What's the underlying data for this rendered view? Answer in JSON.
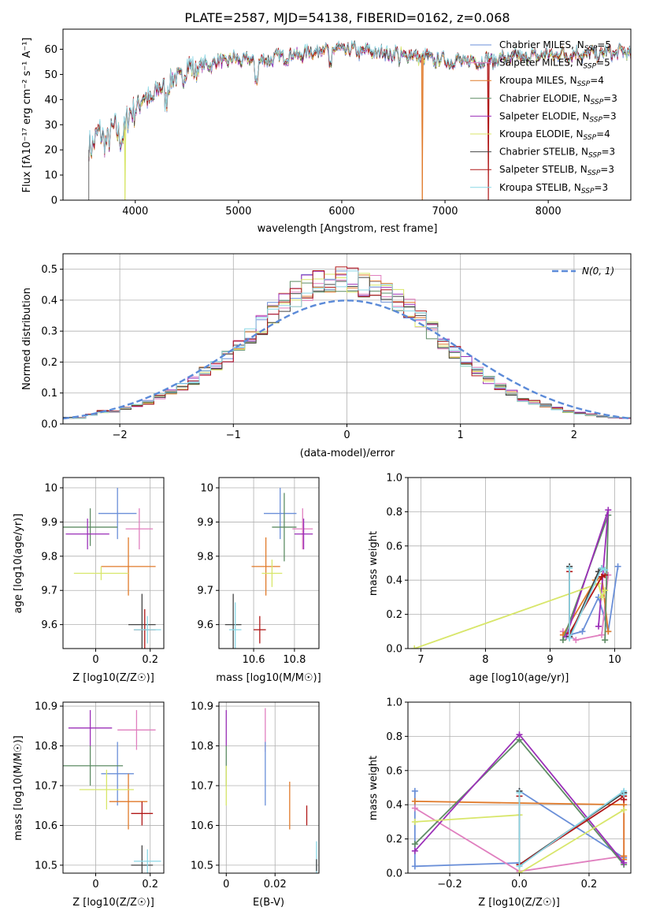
{
  "title": "PLATE=2587, MJD=54138, FIBERID=0162, z=0.068",
  "colors": {
    "Chabrier MILES": "#6a8fd8",
    "Salpeter MILES": "#e07fbf",
    "Kroupa MILES": "#e07a2a",
    "Chabrier ELODIE": "#5e8c64",
    "Salpeter ELODIE": "#9b2fb8",
    "Kroupa ELODIE": "#d8e66a",
    "Chabrier STELIB": "#454545",
    "Salpeter STELIB": "#b01818",
    "Kroupa STELIB": "#8ad7e6"
  },
  "chart_data": [
    {
      "type": "line",
      "panel": "spectrum",
      "xlabel": "wavelength [Angstrom, rest frame]",
      "ylabel": "Flux [fλ10⁻¹⁷ erg cm⁻² s⁻¹ A⁻¹]",
      "xlim": [
        3300,
        8800
      ],
      "ylim": [
        0,
        68
      ],
      "xticks": [
        4000,
        5000,
        6000,
        7000,
        8000
      ],
      "yticks": [
        0,
        10,
        20,
        30,
        40,
        50,
        60
      ],
      "legend_position": "top-right",
      "continuum": {
        "x": [
          3550,
          3600,
          3700,
          3800,
          3900,
          4000,
          4100,
          4200,
          4300,
          4400,
          4500,
          4600,
          4800,
          5000,
          5200,
          5400,
          5600,
          5800,
          6000,
          6300,
          6600,
          6900,
          7200,
          7500,
          7800,
          8100,
          8400,
          8800
        ],
        "y": [
          23,
          24,
          25,
          26,
          28,
          38,
          40,
          42,
          46,
          48,
          52,
          53,
          55,
          56,
          55,
          57,
          58,
          60,
          60,
          59,
          58,
          56,
          55,
          56,
          57,
          58,
          58,
          59
        ]
      },
      "series": [
        {
          "name": "Chabrier MILES, N_SSP=5",
          "label_main": "Chabrier MILES, N",
          "label_sub": "SSP",
          "label_end": "=5"
        },
        {
          "name": "Salpeter MILES, N_SSP=5",
          "label_main": "Salpeter MILES, N",
          "label_sub": "SSP",
          "label_end": "=5"
        },
        {
          "name": "Kroupa MILES, N_SSP=4",
          "label_main": "Kroupa MILES, N",
          "label_sub": "SSP",
          "label_end": "=4"
        },
        {
          "name": "Chabrier ELODIE, N_SSP=3",
          "label_main": "Chabrier ELODIE, N",
          "label_sub": "SSP",
          "label_end": "=3"
        },
        {
          "name": "Salpeter ELODIE, N_SSP=3",
          "label_main": "Salpeter ELODIE, N",
          "label_sub": "SSP",
          "label_end": "=3"
        },
        {
          "name": "Kroupa ELODIE, N_SSP=4",
          "label_main": "Kroupa ELODIE, N",
          "label_sub": "SSP",
          "label_end": "=4"
        },
        {
          "name": "Chabrier STELIB, N_SSP=3",
          "label_main": "Chabrier STELIB, N",
          "label_sub": "SSP",
          "label_end": "=3"
        },
        {
          "name": "Salpeter STELIB, N_SSP=3",
          "label_main": "Salpeter STELIB, N",
          "label_sub": "SSP",
          "label_end": "=3"
        },
        {
          "name": "Kroupa STELIB, N_SSP=3",
          "label_main": "Kroupa STELIB, N",
          "label_sub": "SSP",
          "label_end": "=3"
        }
      ],
      "dropouts": [
        {
          "model": "Kroupa ELODIE",
          "x": 3900
        },
        {
          "model": "Kroupa MILES",
          "x": 6780
        },
        {
          "model": "Salpeter STELIB",
          "x": 7420
        }
      ]
    },
    {
      "type": "line",
      "panel": "residual_histogram",
      "xlabel": "(data-model)/error",
      "ylabel": "Normed distribution",
      "xlim": [
        -2.5,
        2.5
      ],
      "ylim": [
        0,
        0.55
      ],
      "xticks": [
        -2,
        -1,
        0,
        1,
        2
      ],
      "xtick_labels": [
        "−2",
        "−1",
        "0",
        "1",
        "2"
      ],
      "yticks": [
        0.0,
        0.1,
        0.2,
        0.3,
        0.4,
        0.5
      ],
      "legend": "N(0, 1)",
      "legend_position": "top-right",
      "bin_edges_start": -2.5,
      "bin_width": 0.1,
      "bin_values": [
        0.02,
        0.02,
        0.03,
        0.04,
        0.04,
        0.05,
        0.06,
        0.07,
        0.09,
        0.1,
        0.12,
        0.14,
        0.17,
        0.19,
        0.22,
        0.25,
        0.28,
        0.32,
        0.36,
        0.39,
        0.42,
        0.44,
        0.46,
        0.47,
        0.47,
        0.46,
        0.45,
        0.44,
        0.42,
        0.4,
        0.37,
        0.34,
        0.3,
        0.26,
        0.23,
        0.2,
        0.17,
        0.14,
        0.12,
        0.1,
        0.08,
        0.07,
        0.06,
        0.05,
        0.04,
        0.035,
        0.03,
        0.025,
        0.02,
        0.02
      ],
      "gaussian": {
        "mean": 0,
        "sigma": 1
      }
    },
    {
      "type": "scatter",
      "panel": "age_vs_Z",
      "xlabel": "Z [log10(Z/Z☉)]",
      "ylabel": "age [log10(age/yr)]",
      "xlim": [
        -0.12,
        0.25
      ],
      "ylim": [
        9.53,
        10.03
      ],
      "xticks": [
        0.0,
        0.2
      ],
      "yticks": [
        9.6,
        9.7,
        9.8,
        9.9,
        10.0
      ],
      "points": [
        {
          "model": "Chabrier MILES",
          "x": 0.08,
          "xerr": 0.07,
          "y": 9.925,
          "yerr": 0.075
        },
        {
          "model": "Salpeter MILES",
          "x": 0.16,
          "xerr": 0.05,
          "y": 9.88,
          "yerr": 0.06
        },
        {
          "model": "Kroupa MILES",
          "x": 0.12,
          "xerr": 0.1,
          "y": 9.77,
          "yerr": 0.085
        },
        {
          "model": "Chabrier ELODIE",
          "x": -0.02,
          "xerr": 0.1,
          "y": 9.885,
          "yerr": 0.055
        },
        {
          "model": "Salpeter ELODIE",
          "x": -0.03,
          "xerr": 0.08,
          "y": 9.865,
          "yerr": 0.045
        },
        {
          "model": "Kroupa ELODIE",
          "x": 0.02,
          "xerr": 0.1,
          "y": 9.75,
          "yerr": 0.02
        },
        {
          "model": "Chabrier STELIB",
          "x": 0.17,
          "xerr": 0.05,
          "y": 9.6,
          "yerr": 0.09
        },
        {
          "model": "Salpeter STELIB",
          "x": 0.18,
          "xerr": 0.04,
          "y": 9.585,
          "yerr": 0.06
        },
        {
          "model": "Kroupa STELIB",
          "x": 0.19,
          "xerr": 0.05,
          "y": 9.585,
          "yerr": 0.04
        }
      ]
    },
    {
      "type": "scatter",
      "panel": "age_vs_mass",
      "xlabel": "mass [log10(M/M☉)]",
      "ylabel": "",
      "xlim": [
        10.43,
        10.92
      ],
      "ylim": [
        9.53,
        10.03
      ],
      "xticks": [
        10.6,
        10.8
      ],
      "yticks": [
        9.6,
        9.7,
        9.8,
        9.9,
        10.0
      ],
      "points": [
        {
          "model": "Chabrier MILES",
          "x": 10.73,
          "xerr": 0.08,
          "y": 9.925,
          "yerr": 0.075
        },
        {
          "model": "Salpeter MILES",
          "x": 10.84,
          "xerr": 0.05,
          "y": 9.88,
          "yerr": 0.06
        },
        {
          "model": "Kroupa MILES",
          "x": 10.66,
          "xerr": 0.07,
          "y": 9.77,
          "yerr": 0.085
        },
        {
          "model": "Chabrier ELODIE",
          "x": 10.75,
          "xerr": 0.06,
          "y": 9.885,
          "yerr": 0.1
        },
        {
          "model": "Salpeter ELODIE",
          "x": 10.845,
          "xerr": 0.045,
          "y": 9.865,
          "yerr": 0.045
        },
        {
          "model": "Kroupa ELODIE",
          "x": 10.69,
          "xerr": 0.05,
          "y": 9.75,
          "yerr": 0.04
        },
        {
          "model": "Chabrier STELIB",
          "x": 10.5,
          "xerr": 0.04,
          "y": 9.6,
          "yerr": 0.09
        },
        {
          "model": "Salpeter STELIB",
          "x": 10.63,
          "xerr": 0.03,
          "y": 9.585,
          "yerr": 0.04
        },
        {
          "model": "Kroupa STELIB",
          "x": 10.51,
          "xerr": 0.03,
          "y": 9.585,
          "yerr": 0.08
        }
      ]
    },
    {
      "type": "line",
      "panel": "mass_weight_vs_age",
      "xlabel": "age [log10(age/yr)]",
      "ylabel": "mass weight",
      "xlim": [
        6.8,
        10.25
      ],
      "ylim": [
        0,
        1
      ],
      "xticks": [
        7,
        8,
        9,
        10
      ],
      "yticks": [
        0.0,
        0.2,
        0.4,
        0.6,
        0.8,
        1.0
      ],
      "series": [
        {
          "model": "Chabrier MILES",
          "x": [
            9.3,
            9.5,
            9.75,
            9.9,
            10.05
          ],
          "y": [
            0.08,
            0.1,
            0.3,
            0.1,
            0.48
          ]
        },
        {
          "model": "Salpeter MILES",
          "x": [
            9.2,
            9.4,
            9.8,
            9.9
          ],
          "y": [
            0.1,
            0.05,
            0.08,
            0.43
          ]
        },
        {
          "model": "Kroupa MILES",
          "x": [
            9.2,
            9.7,
            9.8,
            9.9
          ],
          "y": [
            0.08,
            0.4,
            0.42,
            0.1
          ]
        },
        {
          "model": "Chabrier ELODIE",
          "x": [
            9.2,
            9.9,
            9.85
          ],
          "y": [
            0.05,
            0.78,
            0.05
          ]
        },
        {
          "model": "Salpeter ELODIE",
          "x": [
            9.25,
            9.9,
            9.75
          ],
          "y": [
            0.07,
            0.81,
            0.13
          ]
        },
        {
          "model": "Kroupa ELODIE",
          "x": [
            6.9,
            9.75,
            9.8,
            9.85
          ],
          "y": [
            0.0,
            0.38,
            0.3,
            0.34
          ]
        },
        {
          "model": "Chabrier STELIB",
          "x": [
            9.3,
            9.3,
            9.75,
            9.8
          ],
          "y": [
            0.48,
            0.07,
            0.45,
            0.47
          ]
        },
        {
          "model": "Salpeter STELIB",
          "x": [
            9.3,
            9.3,
            9.8,
            9.85
          ],
          "y": [
            0.45,
            0.09,
            0.42,
            0.43
          ]
        },
        {
          "model": "Kroupa STELIB",
          "x": [
            9.3,
            9.3,
            9.8,
            9.85
          ],
          "y": [
            0.47,
            0.06,
            0.47,
            0.46
          ]
        }
      ]
    },
    {
      "type": "scatter",
      "panel": "mass_vs_Z",
      "xlabel": "Z [log10(Z/Z☉)]",
      "ylabel": "mass [log10(M/M☉)]",
      "xlim": [
        -0.12,
        0.25
      ],
      "ylim": [
        10.48,
        10.91
      ],
      "xticks": [
        0.0,
        0.2
      ],
      "yticks": [
        10.5,
        10.6,
        10.7,
        10.8,
        10.9
      ],
      "points": [
        {
          "model": "Chabrier MILES",
          "x": 0.08,
          "xerr": 0.06,
          "y": 10.73,
          "yerr": 0.08
        },
        {
          "model": "Salpeter MILES",
          "x": 0.15,
          "xerr": 0.07,
          "y": 10.84,
          "yerr": 0.05
        },
        {
          "model": "Kroupa MILES",
          "x": 0.12,
          "xerr": 0.07,
          "y": 10.66,
          "yerr": 0.07
        },
        {
          "model": "Chabrier ELODIE",
          "x": -0.02,
          "xerr": 0.12,
          "y": 10.75,
          "yerr": 0.05
        },
        {
          "model": "Salpeter ELODIE",
          "x": -0.02,
          "xerr": 0.08,
          "y": 10.845,
          "yerr": 0.045
        },
        {
          "model": "Kroupa ELODIE",
          "x": 0.04,
          "xerr": 0.1,
          "y": 10.69,
          "yerr": 0.05
        },
        {
          "model": "Chabrier STELIB",
          "x": 0.17,
          "xerr": 0.04,
          "y": 10.5,
          "yerr": 0.05
        },
        {
          "model": "Salpeter STELIB",
          "x": 0.17,
          "xerr": 0.04,
          "y": 10.63,
          "yerr": 0.03
        },
        {
          "model": "Kroupa STELIB",
          "x": 0.19,
          "xerr": 0.05,
          "y": 10.51,
          "yerr": 0.03
        }
      ]
    },
    {
      "type": "scatter",
      "panel": "mass_vs_EBV",
      "xlabel": "E(B-V)",
      "ylabel": "",
      "xlim": [
        -0.003,
        0.038
      ],
      "ylim": [
        10.48,
        10.91
      ],
      "xticks": [
        0.0,
        0.02
      ],
      "yticks": [
        10.5,
        10.6,
        10.7,
        10.8,
        10.9
      ],
      "points": [
        {
          "model": "Salpeter ELODIE",
          "x": 0.0,
          "xerr": 0,
          "y": 10.845,
          "yerr": 0.045
        },
        {
          "model": "Chabrier ELODIE",
          "x": 0.0,
          "xerr": 0,
          "y": 10.75,
          "yerr": 0.05
        },
        {
          "model": "Kroupa ELODIE",
          "x": 0.0,
          "xerr": 0,
          "y": 10.7,
          "yerr": 0.05
        },
        {
          "model": "Salpeter MILES",
          "x": 0.016,
          "xerr": 0,
          "y": 10.84,
          "yerr": 0.055
        },
        {
          "model": "Chabrier MILES",
          "x": 0.016,
          "xerr": 0,
          "y": 10.73,
          "yerr": 0.08
        },
        {
          "model": "Kroupa MILES",
          "x": 0.026,
          "xerr": 0,
          "y": 10.65,
          "yerr": 0.06
        },
        {
          "model": "Salpeter STELIB",
          "x": 0.033,
          "xerr": 0,
          "y": 10.625,
          "yerr": 0.025
        },
        {
          "model": "Kroupa STELIB",
          "x": 0.037,
          "xerr": 0,
          "y": 10.52,
          "yerr": 0.04
        },
        {
          "model": "Chabrier STELIB",
          "x": 0.037,
          "xerr": 0,
          "y": 10.5,
          "yerr": 0.015
        }
      ]
    },
    {
      "type": "line",
      "panel": "mass_weight_vs_Z",
      "xlabel": "Z [log10(Z/Z☉)]",
      "ylabel": "mass weight",
      "xlim": [
        -0.32,
        0.32
      ],
      "ylim": [
        0,
        1
      ],
      "xticks": [
        -0.2,
        0.0,
        0.2
      ],
      "xtick_labels": [
        "−0.2",
        "0.0",
        "0.2"
      ],
      "yticks": [
        0.0,
        0.2,
        0.4,
        0.6,
        0.8,
        1.0
      ],
      "series": [
        {
          "model": "Chabrier MILES",
          "x": [
            -0.3,
            -0.3,
            0.0,
            0.0,
            0.3
          ],
          "y": [
            0.48,
            0.04,
            0.06,
            0.48,
            0.09
          ]
        },
        {
          "model": "Salpeter MILES",
          "x": [
            -0.3,
            0.0,
            0.3,
            0.3
          ],
          "y": [
            0.38,
            0.01,
            0.1,
            0.43
          ]
        },
        {
          "model": "Kroupa MILES",
          "x": [
            -0.3,
            0.3,
            0.3,
            0.3
          ],
          "y": [
            0.42,
            0.4,
            0.1,
            0.08
          ]
        },
        {
          "model": "Chabrier ELODIE",
          "x": [
            -0.3,
            0.0,
            0.3
          ],
          "y": [
            0.17,
            0.78,
            0.05
          ]
        },
        {
          "model": "Salpeter ELODIE",
          "x": [
            -0.3,
            0.0,
            0.3
          ],
          "y": [
            0.13,
            0.81,
            0.06
          ]
        },
        {
          "model": "Kroupa ELODIE",
          "x": [
            -0.3,
            0.0,
            0.0,
            0.3
          ],
          "y": [
            0.3,
            0.34,
            0.0,
            0.37
          ]
        },
        {
          "model": "Chabrier STELIB",
          "x": [
            0.0,
            0.0,
            0.3,
            0.3
          ],
          "y": [
            0.48,
            0.05,
            0.47,
            0.47
          ]
        },
        {
          "model": "Salpeter STELIB",
          "x": [
            0.0,
            0.0,
            0.3,
            0.3
          ],
          "y": [
            0.45,
            0.05,
            0.45,
            0.43
          ]
        },
        {
          "model": "Kroupa STELIB",
          "x": [
            0.0,
            0.0,
            0.3,
            0.3
          ],
          "y": [
            0.47,
            0.04,
            0.48,
            0.46
          ]
        }
      ]
    }
  ]
}
